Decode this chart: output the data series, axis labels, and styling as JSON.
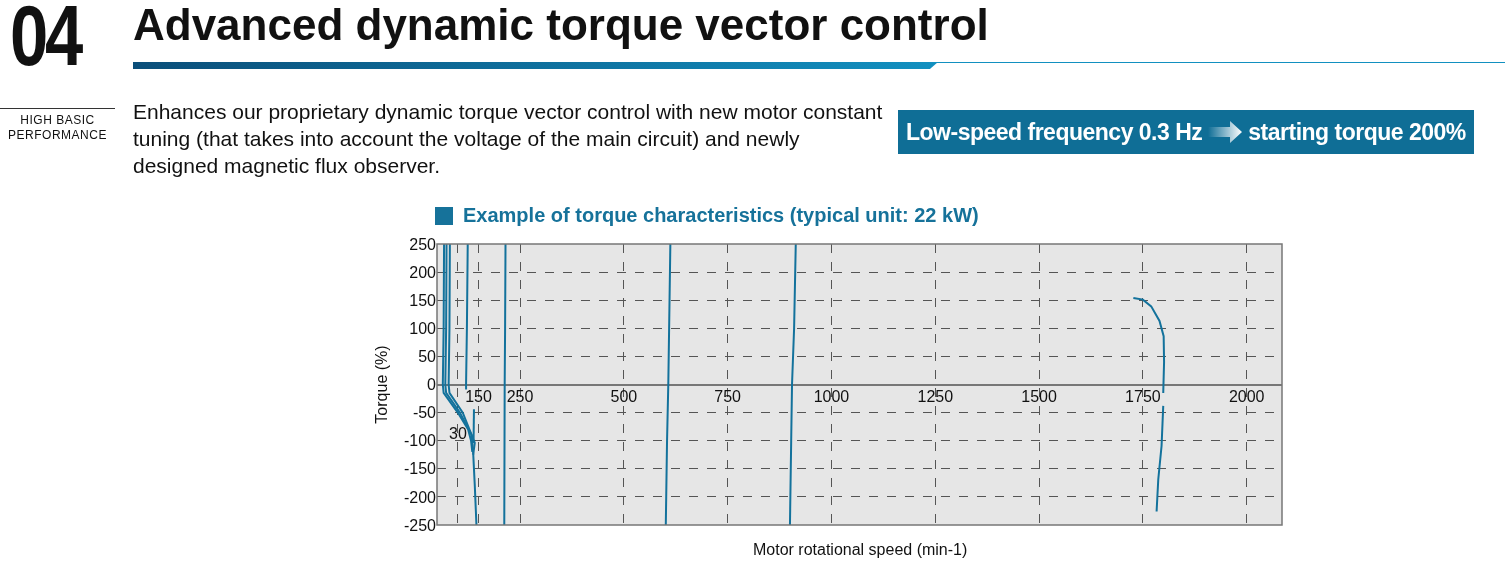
{
  "chart_data": {
    "type": "line",
    "title": "Advanced dynamic torque vector control",
    "subtitle": "Example of torque characteristics (typical unit: 22 kW)",
    "xlabel": "Motor rotational speed (min-1)",
    "ylabel": "Torque (%)",
    "annotations": [
      "04",
      "HIGH BASIC PERFORMANCE",
      "Enhances our proprietary dynamic torque vector control with new motor constant tuning (that takes into account the voltage of the main circuit) and newly designed magnetic flux observer.",
      "Low-speed frequency 0.3 Hz",
      "starting torque 200%",
      "30"
    ],
    "xlim": [
      50,
      2085
    ],
    "ylim": [
      -250,
      250
    ],
    "xticks": [
      {
        "value": 100,
        "label": null
      },
      150,
      250,
      500,
      750,
      1000,
      1250,
      1500,
      1750,
      2000
    ],
    "yticks": [
      -250,
      -200,
      -150,
      -100,
      -50,
      0,
      50,
      100,
      150,
      200,
      250
    ],
    "grid": true,
    "series": [
      {
        "color": "#13729c",
        "x": [
          67,
          66,
          64,
          66,
          100,
          125,
          132,
          135
        ],
        "values": [
          250,
          100,
          0,
          -15,
          -50,
          -80,
          -100,
          -120
        ]
      },
      {
        "color": "#13729c",
        "x": [
          73,
          72,
          70,
          72,
          105,
          133,
          137,
          141,
          145
        ],
        "values": [
          250,
          100,
          0,
          -15,
          -50,
          -89,
          -120,
          -180,
          -250
        ]
      },
      {
        "color": "#13729c",
        "x": [
          81,
          80,
          78,
          80,
          112,
          141,
          137
        ],
        "values": [
          250,
          100,
          0,
          -15,
          -50,
          -104,
          -125
        ]
      },
      {
        "color": "#13729c",
        "x": [
          124,
          122,
          120,
          120,
          null,
          139,
          138
        ],
        "values": [
          250,
          100,
          0,
          -9,
          null,
          -44,
          -104
        ]
      },
      {
        "color": "#13729c",
        "x": [
          215,
          214,
          213,
          212
        ],
        "values": [
          250,
          100,
          0,
          -250
        ]
      },
      {
        "color": "#13729c",
        "x": [
          612,
          609,
          607,
          604,
          601
        ],
        "values": [
          250,
          100,
          0,
          -100,
          -250
        ]
      },
      {
        "color": "#13729c",
        "x": [
          914,
          910,
          905,
          903,
          900
        ],
        "values": [
          250,
          100,
          0,
          -100,
          -250
        ]
      },
      {
        "color": "#13729c",
        "x": [
          1727,
          1750,
          1770,
          1790,
          1800,
          1801,
          1799,
          null,
          1799,
          1795,
          1787,
          1783
        ],
        "values": [
          154,
          151,
          139,
          113,
          86,
          40,
          -15,
          null,
          -38,
          -109,
          -169,
          -226
        ]
      }
    ]
  }
}
